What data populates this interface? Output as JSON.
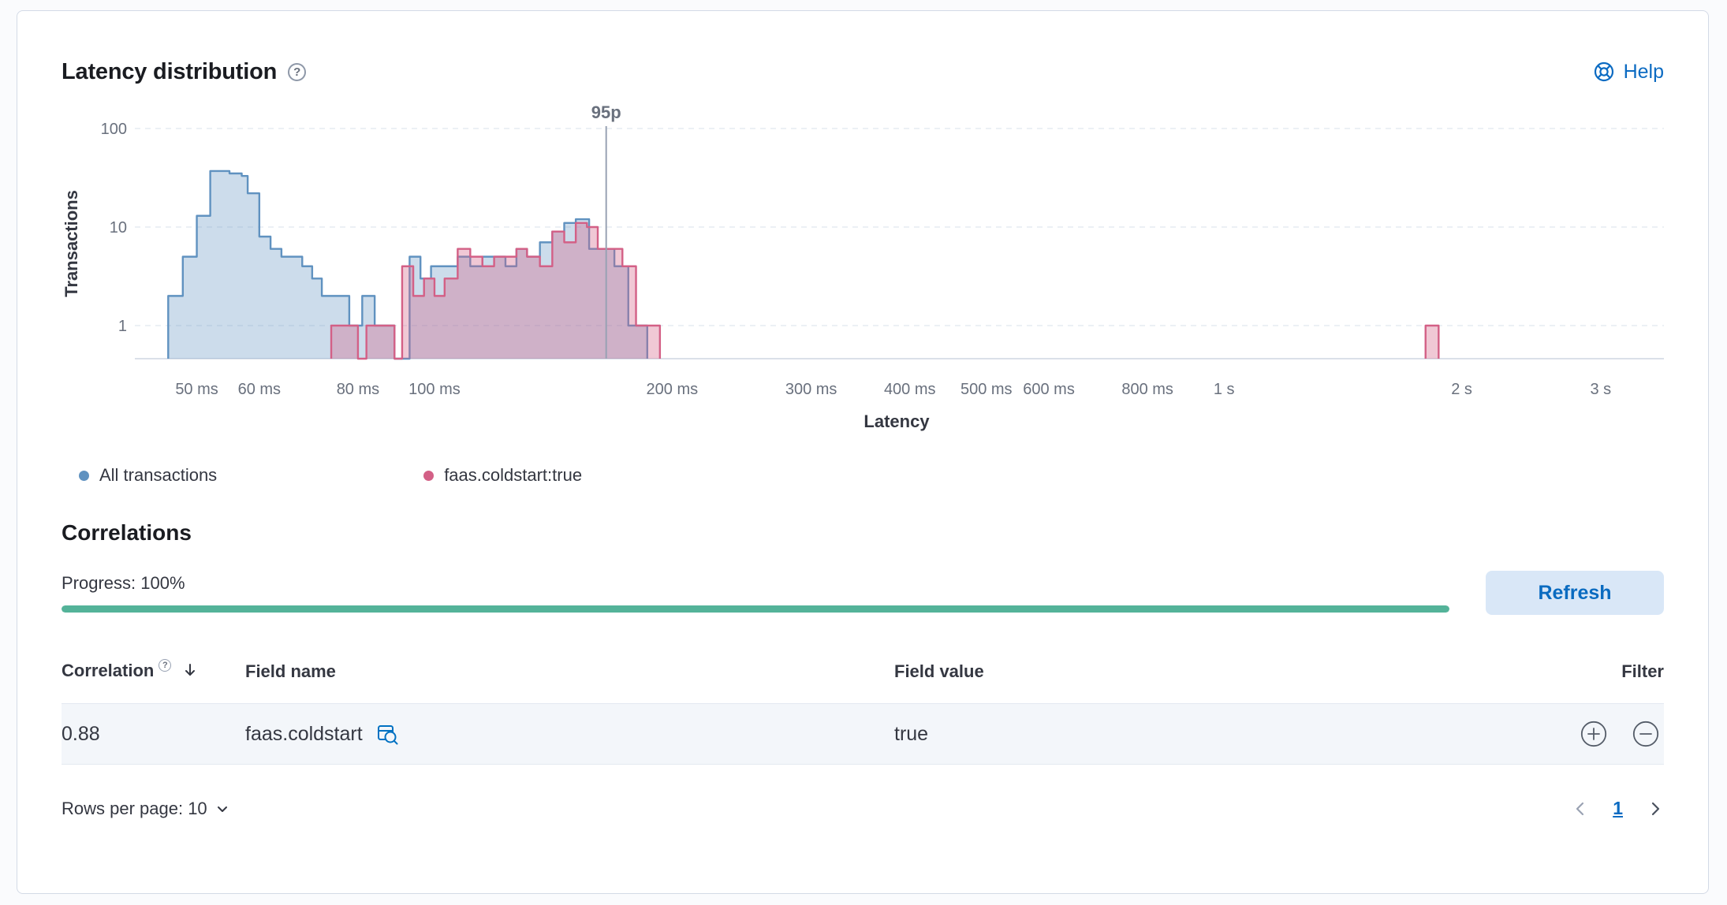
{
  "header": {
    "title": "Latency distribution",
    "help_label": "Help"
  },
  "chart_data": {
    "type": "area",
    "subtype": "log-log step histogram",
    "title": "Latency distribution",
    "xlabel": "Latency",
    "ylabel": "Transactions",
    "x_scale": "log",
    "y_scale": "log",
    "x_domain_ms": [
      43.7,
      3390
    ],
    "y_ticks": [
      1,
      10,
      100
    ],
    "x_ticks": [
      {
        "ms": 50,
        "label": "50 ms"
      },
      {
        "ms": 60,
        "label": "60 ms"
      },
      {
        "ms": 80,
        "label": "80 ms"
      },
      {
        "ms": 100,
        "label": "100 ms"
      },
      {
        "ms": 200,
        "label": "200 ms"
      },
      {
        "ms": 300,
        "label": "300 ms"
      },
      {
        "ms": 400,
        "label": "400 ms"
      },
      {
        "ms": 500,
        "label": "500 ms"
      },
      {
        "ms": 600,
        "label": "600 ms"
      },
      {
        "ms": 800,
        "label": "800 ms"
      },
      {
        "ms": 1000,
        "label": "1 s"
      },
      {
        "ms": 2000,
        "label": "2 s"
      },
      {
        "ms": 3000,
        "label": "3 s"
      }
    ],
    "percentile_marker": {
      "label": "95p",
      "ms": 165
    },
    "series": [
      {
        "name": "All transactions",
        "color": "#6092c0",
        "fill_opacity": 0.32,
        "segments": [
          [
            [
              46,
              2
            ],
            [
              48,
              5
            ],
            [
              50,
              13
            ],
            [
              52,
              37
            ],
            [
              55,
              35
            ],
            [
              57,
              33
            ],
            [
              58,
              22
            ],
            [
              60,
              8
            ],
            [
              62,
              6
            ],
            [
              64,
              5
            ],
            [
              66,
              5
            ],
            [
              68,
              4
            ],
            [
              70,
              3
            ],
            [
              72,
              2
            ],
            [
              75,
              2
            ],
            [
              78,
              1
            ],
            [
              81,
              2
            ],
            [
              84,
              1
            ],
            [
              87,
              1
            ],
            [
              89,
              0
            ],
            [
              93,
              5
            ],
            [
              96,
              3
            ],
            [
              99,
              4
            ],
            [
              103,
              4
            ],
            [
              107,
              5
            ],
            [
              111,
              4
            ],
            [
              115,
              5
            ],
            [
              119,
              5
            ],
            [
              123,
              4
            ],
            [
              127,
              6
            ],
            [
              131,
              5
            ],
            [
              136,
              7
            ],
            [
              141,
              9
            ],
            [
              146,
              11
            ],
            [
              151,
              12
            ],
            [
              157,
              6
            ],
            [
              163,
              6
            ],
            [
              169,
              4
            ],
            [
              176,
              1
            ],
            [
              186,
              0
            ]
          ]
        ]
      },
      {
        "name": "faas.coldstart:true",
        "color": "#d36086",
        "fill_opacity": 0.35,
        "segments": [
          [
            [
              74,
              1
            ],
            [
              78,
              1
            ],
            [
              80,
              0
            ],
            [
              82,
              1
            ],
            [
              86,
              1
            ],
            [
              89,
              0
            ],
            [
              91,
              4
            ],
            [
              94,
              2
            ],
            [
              97,
              3
            ],
            [
              100,
              2
            ],
            [
              103,
              3
            ],
            [
              107,
              6
            ],
            [
              111,
              5
            ],
            [
              115,
              4
            ],
            [
              119,
              5
            ],
            [
              123,
              5
            ],
            [
              127,
              6
            ],
            [
              131,
              5
            ],
            [
              136,
              4
            ],
            [
              141,
              9
            ],
            [
              146,
              7
            ],
            [
              151,
              11
            ],
            [
              156,
              10
            ],
            [
              161,
              6
            ],
            [
              167,
              6
            ],
            [
              173,
              4
            ],
            [
              180,
              1
            ],
            [
              193,
              0
            ]
          ],
          [
            [
              1800,
              1
            ],
            [
              1870,
              0
            ]
          ]
        ]
      }
    ]
  },
  "legend": [
    {
      "label": "All transactions",
      "color": "#6092c0"
    },
    {
      "label": "faas.coldstart:true",
      "color": "#d36086"
    }
  ],
  "correlations": {
    "title": "Correlations",
    "progress_label": "Progress: 100%",
    "progress_value": 100,
    "refresh_label": "Refresh"
  },
  "table": {
    "headers": {
      "correlation": "Correlation",
      "field_name": "Field name",
      "field_value": "Field value",
      "filter": "Filter"
    },
    "rows": [
      {
        "correlation": "0.88",
        "field_name": "faas.coldstart",
        "field_value": "true"
      }
    ]
  },
  "pagination": {
    "rows_per_page_label": "Rows per page: 10",
    "current_page": "1"
  },
  "colors": {
    "accent": "#0071c2",
    "progress": "#54b399"
  }
}
